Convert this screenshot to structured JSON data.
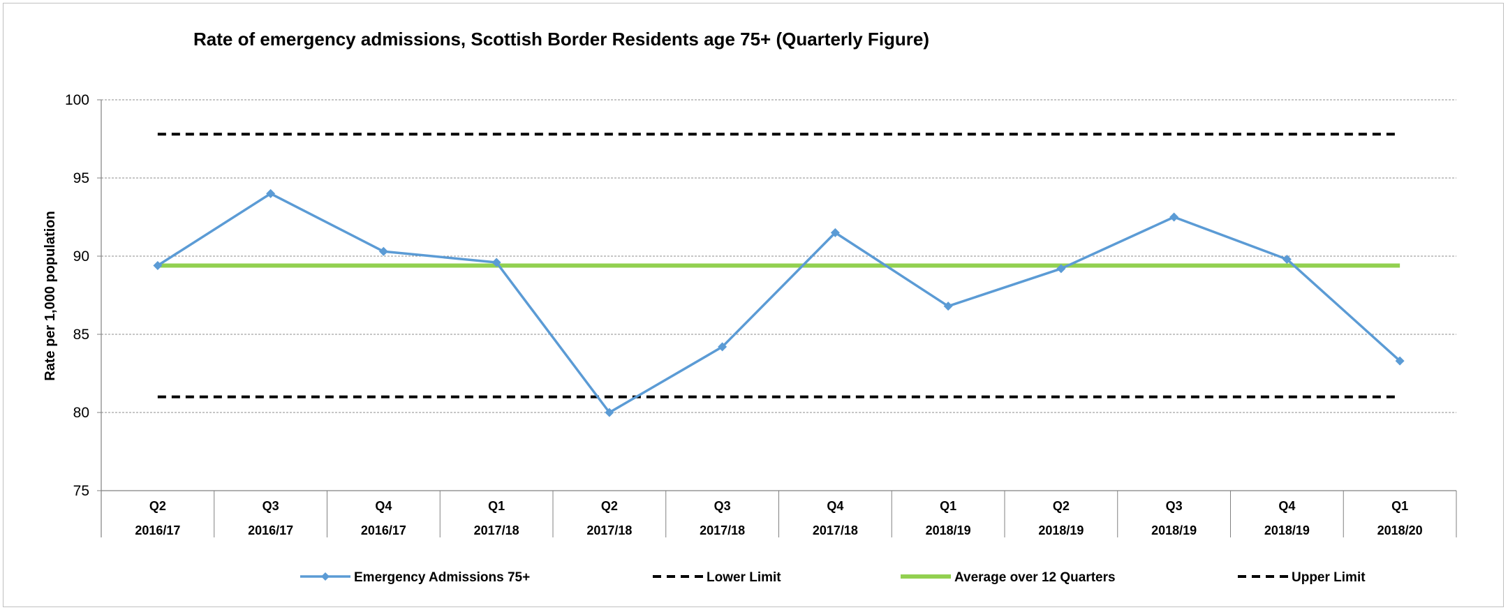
{
  "chart_data": {
    "type": "line",
    "title": "Rate of emergency admissions, Scottish Border Residents age 75+ (Quarterly Figure)",
    "ylabel": "Rate per 1,000 population",
    "xlabel": "",
    "ylim": [
      75,
      100
    ],
    "yticks": [
      100,
      95,
      90,
      85,
      80,
      75
    ],
    "grid": true,
    "legend_position": "bottom",
    "categories": [
      {
        "quarter": "Q2",
        "year": "2016/17"
      },
      {
        "quarter": "Q3",
        "year": "2016/17"
      },
      {
        "quarter": "Q4",
        "year": "2016/17"
      },
      {
        "quarter": "Q1",
        "year": "2017/18"
      },
      {
        "quarter": "Q2",
        "year": "2017/18"
      },
      {
        "quarter": "Q3",
        "year": "2017/18"
      },
      {
        "quarter": "Q4",
        "year": "2017/18"
      },
      {
        "quarter": "Q1",
        "year": "2018/19"
      },
      {
        "quarter": "Q2",
        "year": "2018/19"
      },
      {
        "quarter": "Q3",
        "year": "2018/19"
      },
      {
        "quarter": "Q4",
        "year": "2018/19"
      },
      {
        "quarter": "Q1",
        "year": "2018/20"
      }
    ],
    "series": [
      {
        "name": "Emergency Admissions 75+",
        "color": "#5b9bd5",
        "style": "line-marker",
        "values": [
          89.4,
          94.0,
          90.3,
          89.6,
          80.0,
          84.2,
          91.5,
          86.8,
          89.2,
          92.5,
          89.8,
          83.3
        ]
      },
      {
        "name": "Lower Limit",
        "color": "#000000",
        "style": "dashed",
        "values": [
          81.0,
          81.0,
          81.0,
          81.0,
          81.0,
          81.0,
          81.0,
          81.0,
          81.0,
          81.0,
          81.0,
          81.0
        ]
      },
      {
        "name": "Average over 12 Quarters",
        "color": "#92d050",
        "style": "solid-thick",
        "values": [
          89.4,
          89.4,
          89.4,
          89.4,
          89.4,
          89.4,
          89.4,
          89.4,
          89.4,
          89.4,
          89.4,
          89.4
        ]
      },
      {
        "name": "Upper Limit",
        "color": "#000000",
        "style": "dashed",
        "values": [
          97.8,
          97.8,
          97.8,
          97.8,
          97.8,
          97.8,
          97.8,
          97.8,
          97.8,
          97.8,
          97.8,
          97.8
        ]
      }
    ]
  }
}
